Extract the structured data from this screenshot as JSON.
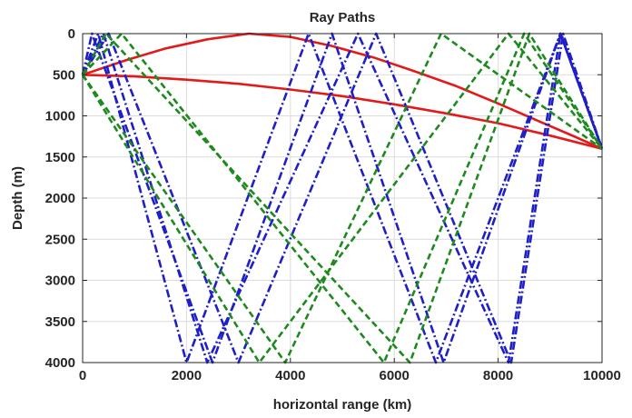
{
  "chart_data": {
    "type": "line",
    "title": "Ray Paths",
    "xlabel": "horizontal range (km)",
    "ylabel": "Depth (m)",
    "xlim": [
      0,
      10000
    ],
    "ylim": [
      0,
      4000
    ],
    "y_reversed": true,
    "grid": true,
    "legend": "none",
    "x_ticks": [
      0,
      2000,
      4000,
      6000,
      8000,
      10000
    ],
    "y_ticks": [
      0,
      500,
      1000,
      1500,
      2000,
      2500,
      3000,
      3500,
      4000
    ],
    "colors": {
      "red": "#e31a1c",
      "blue": "#1f1fc8",
      "green": "#1e8a1e",
      "grid": "#dcdcdc",
      "axis": "#262626"
    },
    "series": [
      {
        "color": "red",
        "style": "solid",
        "x": [
          0,
          800,
          1600,
          2400,
          3200,
          4000,
          4800,
          5600,
          6400,
          7200,
          8000,
          8800,
          9500,
          10000
        ],
        "y": [
          500,
          330,
          180,
          70,
          0,
          40,
          150,
          290,
          460,
          640,
          850,
          1070,
          1260,
          1400
        ]
      },
      {
        "color": "red",
        "style": "solid",
        "x": [
          0,
          1000,
          2000,
          3000,
          4000,
          5000,
          6000,
          7000,
          8000,
          9000,
          10000
        ],
        "y": [
          500,
          520,
          560,
          610,
          680,
          760,
          860,
          970,
          1090,
          1240,
          1400
        ]
      },
      {
        "color": "blue",
        "style": "dashdot",
        "x": [
          0,
          300,
          2000,
          4350,
          6800,
          9200,
          10000
        ],
        "y": [
          500,
          0,
          4000,
          0,
          4000,
          0,
          1400
        ]
      },
      {
        "color": "blue",
        "style": "dashdot",
        "x": [
          0,
          180,
          2500,
          4800,
          6950,
          9200,
          10000
        ],
        "y": [
          500,
          0,
          4000,
          0,
          4000,
          0,
          1400
        ]
      },
      {
        "color": "blue",
        "style": "dashdot",
        "x": [
          0,
          400,
          2400,
          5300,
          8200,
          9200,
          10000
        ],
        "y": [
          500,
          0,
          4000,
          0,
          4000,
          0,
          1400
        ]
      },
      {
        "color": "blue",
        "style": "dashdot",
        "x": [
          0,
          500,
          3000,
          5650,
          8250,
          9250,
          10000
        ],
        "y": [
          500,
          0,
          4000,
          0,
          4000,
          0,
          1400
        ]
      },
      {
        "color": "green",
        "style": "dashed",
        "x": [
          0,
          750,
          5800,
          8500,
          10000
        ],
        "y": [
          500,
          0,
          4000,
          0,
          1400
        ]
      },
      {
        "color": "green",
        "style": "dashed",
        "x": [
          0,
          450,
          6300,
          8600,
          10000
        ],
        "y": [
          500,
          0,
          4000,
          0,
          1400
        ]
      },
      {
        "color": "green",
        "style": "dashed",
        "x": [
          0,
          3900,
          6900,
          10000
        ],
        "y": [
          500,
          4000,
          0,
          1400
        ]
      },
      {
        "color": "green",
        "style": "dashed",
        "x": [
          0,
          3400,
          8200,
          10000
        ],
        "y": [
          500,
          4000,
          0,
          1400
        ]
      }
    ]
  }
}
